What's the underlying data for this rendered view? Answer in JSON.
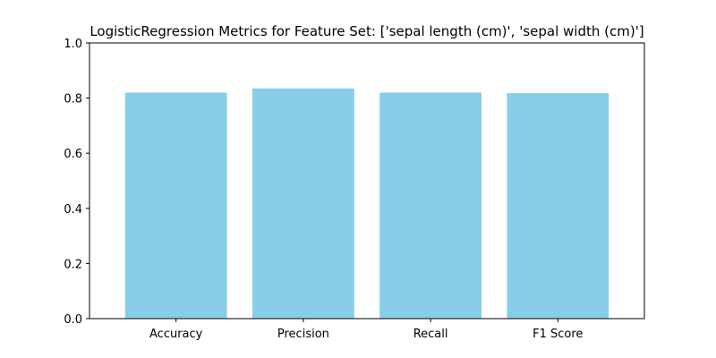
{
  "chart_data": {
    "type": "bar",
    "title": "LogisticRegression Metrics for Feature Set: ['sepal length (cm)', 'sepal width (cm)']",
    "xlabel": "",
    "ylabel": "",
    "categories": [
      "Accuracy",
      "Precision",
      "Recall",
      "F1 Score"
    ],
    "values": [
      0.82,
      0.835,
      0.82,
      0.818
    ],
    "ylim": [
      0,
      1.0
    ],
    "yticks": [
      "0.0",
      "0.2",
      "0.4",
      "0.6",
      "0.8",
      "1.0"
    ],
    "bar_color": "#87CEEB",
    "grid": false,
    "legend": "none"
  }
}
